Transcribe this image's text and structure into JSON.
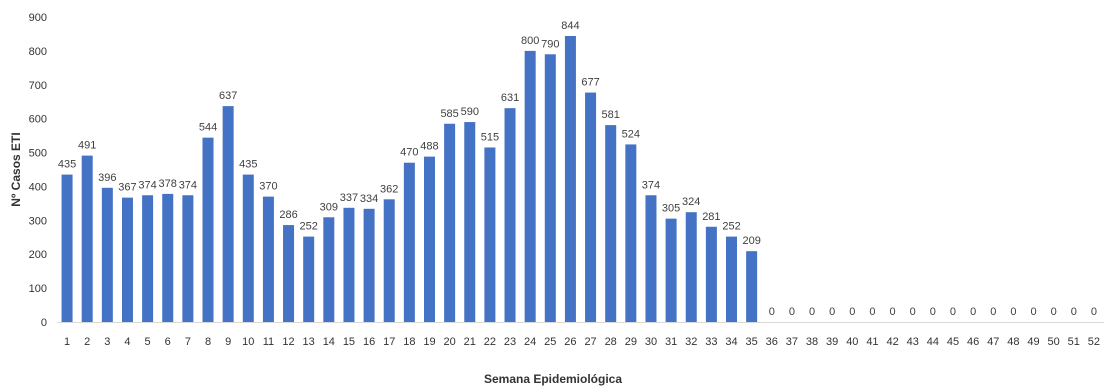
{
  "chart_data": {
    "type": "bar",
    "title": "",
    "xlabel": "Semana Epidemiológica",
    "ylabel": "Nº Casos ETI",
    "ylim": [
      0,
      900
    ],
    "yticks": [
      0,
      100,
      200,
      300,
      400,
      500,
      600,
      700,
      800,
      900
    ],
    "grid": false,
    "legend": "none",
    "bar_color": "#4472C4",
    "categories": [
      "1",
      "2",
      "3",
      "4",
      "5",
      "6",
      "7",
      "8",
      "9",
      "10",
      "11",
      "12",
      "13",
      "14",
      "15",
      "16",
      "17",
      "18",
      "19",
      "20",
      "21",
      "22",
      "23",
      "24",
      "25",
      "26",
      "27",
      "28",
      "29",
      "30",
      "31",
      "32",
      "33",
      "34",
      "35",
      "36",
      "37",
      "38",
      "39",
      "40",
      "41",
      "42",
      "43",
      "44",
      "45",
      "46",
      "47",
      "48",
      "49",
      "50",
      "51",
      "52"
    ],
    "values": [
      435,
      491,
      396,
      367,
      374,
      378,
      374,
      544,
      637,
      435,
      370,
      286,
      252,
      309,
      337,
      334,
      362,
      470,
      488,
      585,
      590,
      515,
      631,
      800,
      790,
      844,
      677,
      581,
      524,
      374,
      305,
      324,
      281,
      252,
      209,
      0,
      0,
      0,
      0,
      0,
      0,
      0,
      0,
      0,
      0,
      0,
      0,
      0,
      0,
      0,
      0,
      0
    ]
  }
}
